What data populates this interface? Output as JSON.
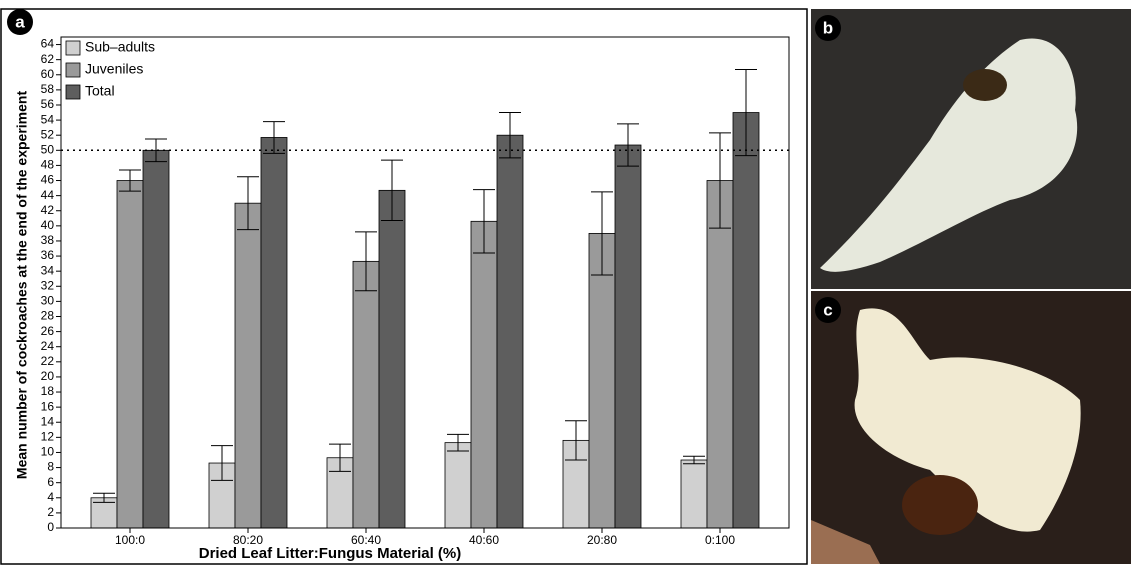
{
  "panel_labels": [
    "a",
    "b",
    "c"
  ],
  "chart_data": {
    "type": "bar",
    "x_label": "Dried Leaf Litter:Fungus Material (%)",
    "y_label": "Mean number of cockroaches at the end of the experiment",
    "categories": [
      "100:0",
      "80:20",
      "60:40",
      "40:60",
      "20:80",
      "0:100"
    ],
    "series": [
      {
        "name": "Sub–adults",
        "color": "#d0d0d0",
        "values": [
          4.0,
          8.6,
          9.3,
          11.3,
          11.6,
          9.0
        ],
        "errors": [
          0.6,
          2.3,
          1.8,
          1.1,
          2.6,
          0.5
        ]
      },
      {
        "name": "Juveniles",
        "color": "#9a9a9a",
        "values": [
          46.0,
          43.0,
          35.3,
          40.6,
          39.0,
          46.0
        ],
        "errors": [
          1.4,
          3.5,
          3.9,
          4.2,
          5.5,
          6.3
        ]
      },
      {
        "name": "Total",
        "color": "#5e5e5e",
        "values": [
          50.0,
          51.7,
          44.7,
          52.0,
          50.7,
          55.0
        ],
        "errors": [
          1.5,
          2.1,
          4.0,
          3.0,
          2.8,
          5.7
        ]
      }
    ],
    "reference_line": 50,
    "ylim": [
      0,
      65
    ],
    "yticks": [
      0,
      2,
      4,
      6,
      8,
      10,
      12,
      14,
      16,
      18,
      20,
      22,
      24,
      26,
      28,
      30,
      32,
      34,
      36,
      38,
      40,
      42,
      44,
      46,
      48,
      50,
      52,
      54,
      56,
      58,
      60,
      62,
      64
    ],
    "legend": "upper left"
  }
}
